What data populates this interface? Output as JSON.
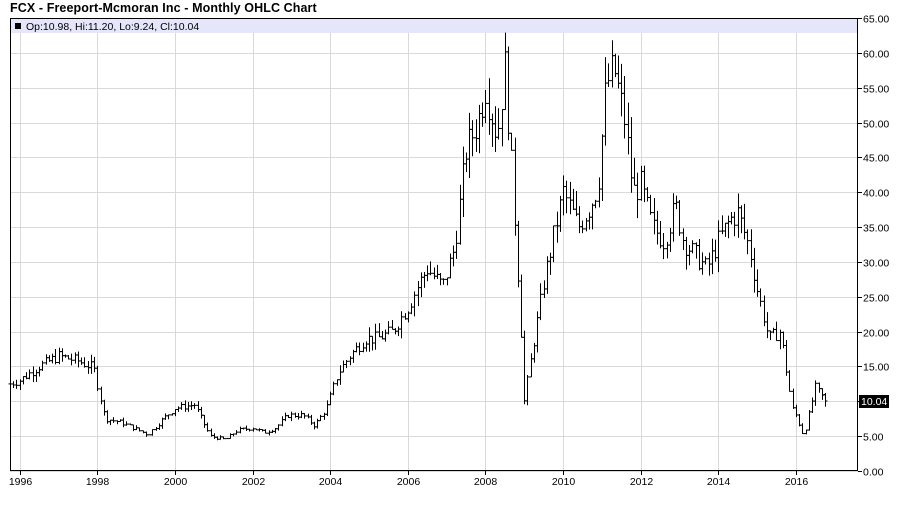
{
  "chart_data": {
    "type": "ohlc",
    "title": "FCX - Freeport-Mcmoran Inc - Monthly OHLC Chart",
    "legend": {
      "text": "Op:10.98, Hi:11.20, Lo:9.24, Cl:10.04",
      "placement": "top-left"
    },
    "last_price_label": "10.04",
    "last_price": 10.04,
    "colors": {
      "bars": "#000000",
      "legend_band": "#e6e6fa",
      "price_tag": "#000000",
      "grid": "#d9d9d9"
    },
    "grid": true,
    "ylim": [
      0,
      65
    ],
    "y_ticks": [
      "0.00",
      "5.00",
      "10.00",
      "15.00",
      "20.00",
      "25.00",
      "30.00",
      "35.00",
      "40.00",
      "45.00",
      "50.00",
      "55.00",
      "60.00",
      "65.00"
    ],
    "y_tick_values": [
      0,
      5,
      10,
      15,
      20,
      25,
      30,
      35,
      40,
      45,
      50,
      55,
      60,
      65
    ],
    "xlim": [
      1995.75,
      2017.6
    ],
    "x_ticks": [
      "1996",
      "1998",
      "2000",
      "2002",
      "2004",
      "2006",
      "2008",
      "2010",
      "2012",
      "2014",
      "2016"
    ],
    "x_tick_values": [
      1996,
      1998,
      2000,
      2002,
      2004,
      2006,
      2008,
      2010,
      2012,
      2014,
      2016
    ],
    "anchor_dates": [
      1995.75,
      1996.0,
      1996.5,
      1997.0,
      1997.5,
      1997.9,
      1998.2,
      1998.6,
      1999.0,
      1999.3,
      1999.7,
      2000.0,
      2000.5,
      2000.9,
      2001.3,
      2001.6,
      2002.0,
      2002.3,
      2002.6,
      2002.9,
      2003.3,
      2003.6,
      2003.9,
      2004.2,
      2004.5,
      2004.9,
      2005.2,
      2005.6,
      2006.0,
      2006.3,
      2006.5,
      2006.9,
      2007.2,
      2007.5,
      2007.8,
      2008.0,
      2008.3,
      2008.5,
      2008.7,
      2008.9,
      2009.0,
      2009.2,
      2009.5,
      2009.8,
      2010.0,
      2010.4,
      2010.7,
      2010.9,
      2011.1,
      2011.3,
      2011.6,
      2011.8,
      2012.0,
      2012.3,
      2012.6,
      2012.9,
      2013.1,
      2013.4,
      2013.7,
      2014.0,
      2014.3,
      2014.5,
      2014.8,
      2015.0,
      2015.3,
      2015.6,
      2015.9,
      2016.0,
      2016.2,
      2016.5,
      2016.75
    ],
    "anchor_closes": [
      12.5,
      13,
      15,
      16.5,
      15.8,
      14.8,
      7.5,
      7,
      6,
      5.2,
      7.5,
      9,
      9.5,
      5,
      4.5,
      5.8,
      6.2,
      5.5,
      6.2,
      8,
      8,
      6.5,
      9,
      14,
      16.5,
      19,
      19,
      20,
      23.5,
      27,
      29,
      26.5,
      32,
      46,
      50,
      55,
      48,
      58,
      41,
      22,
      10,
      17,
      27,
      35,
      40,
      35,
      38,
      41,
      55,
      58,
      50,
      40,
      41,
      35,
      33,
      38,
      33,
      31,
      29,
      33,
      36,
      37,
      32,
      26,
      19,
      20,
      9,
      8,
      5,
      12,
      10.04
    ]
  }
}
